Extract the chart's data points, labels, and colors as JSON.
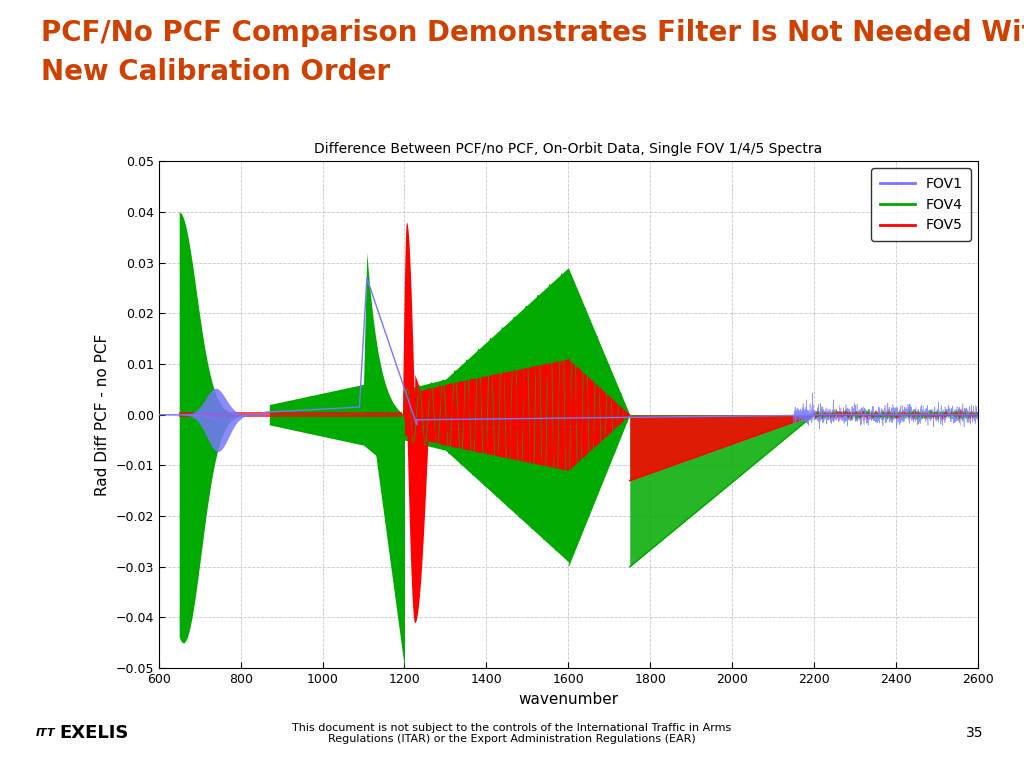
{
  "title_line1": "PCF/No PCF Comparison Demonstrates Filter Is Not Needed With",
  "title_line2": "New Calibration Order",
  "title_color": "#D04000",
  "chart_title": "Difference Between PCF/no PCF, On-Orbit Data, Single FOV 1/4/5 Spectra",
  "xlabel": "wavenumber",
  "ylabel": "Rad Diff PCF - no PCF",
  "xlim": [
    600,
    2600
  ],
  "ylim": [
    -0.05,
    0.05
  ],
  "xticks": [
    600,
    800,
    1000,
    1200,
    1400,
    1600,
    1800,
    2000,
    2200,
    2400,
    2600
  ],
  "yticks": [
    -0.05,
    -0.04,
    -0.03,
    -0.02,
    -0.01,
    0,
    0.01,
    0.02,
    0.03,
    0.04,
    0.05
  ],
  "fov1_color": "#7777FF",
  "fov4_color": "#00AA00",
  "fov5_color": "#FF0000",
  "background_color": "#FFFFFF",
  "footer_text1": "This document is not subject to the controls of the International Traffic in Arms",
  "footer_text2": "Regulations (ITAR) or the Export Administration Regulations (EAR)",
  "footer_number": "35"
}
